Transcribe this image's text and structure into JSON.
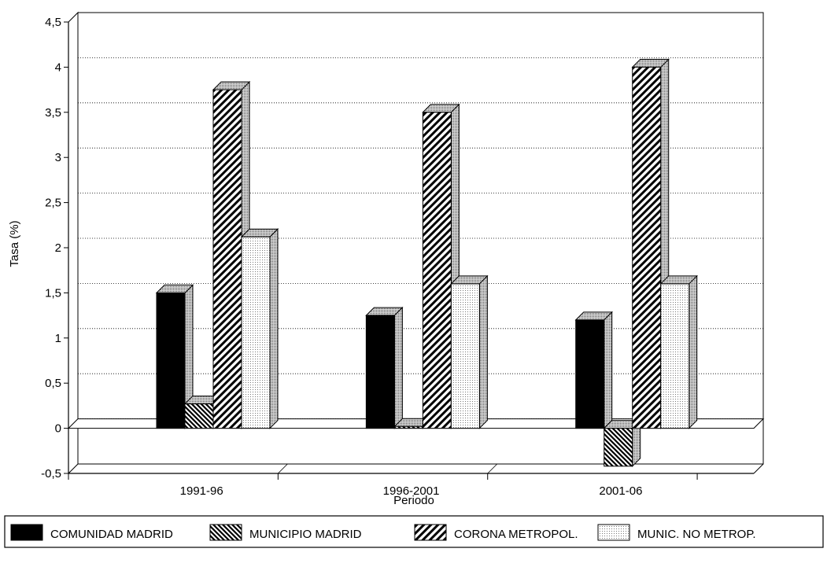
{
  "chart_data": {
    "type": "bar",
    "title": "",
    "xlabel": "Periodo",
    "ylabel": "Tasa (%)",
    "categories": [
      "1991-96",
      "1996-2001",
      "2001-06"
    ],
    "ylim": [
      -0.5,
      4.5
    ],
    "yticks": [
      "-0,5",
      "0",
      "0,5",
      "1",
      "1,5",
      "2",
      "2,5",
      "3",
      "3,5",
      "4",
      "4,5"
    ],
    "grid": true,
    "legend_position": "bottom",
    "series": [
      {
        "name": "COMUNIDAD MADRID",
        "values": [
          1.5,
          1.25,
          1.2
        ],
        "pattern": "solid",
        "color": "#000000"
      },
      {
        "name": "MUNICIPIO MADRID",
        "values": [
          0.27,
          0.02,
          -0.42
        ],
        "pattern": "backslash-hatch",
        "color": "#000000"
      },
      {
        "name": "CORONA METROPOL.",
        "values": [
          3.75,
          3.5,
          4.0
        ],
        "pattern": "slash-hatch",
        "color": "#000000"
      },
      {
        "name": "MUNIC. NO METROP.",
        "values": [
          2.12,
          1.6,
          1.6
        ],
        "pattern": "dots",
        "color": "#000000"
      }
    ]
  }
}
